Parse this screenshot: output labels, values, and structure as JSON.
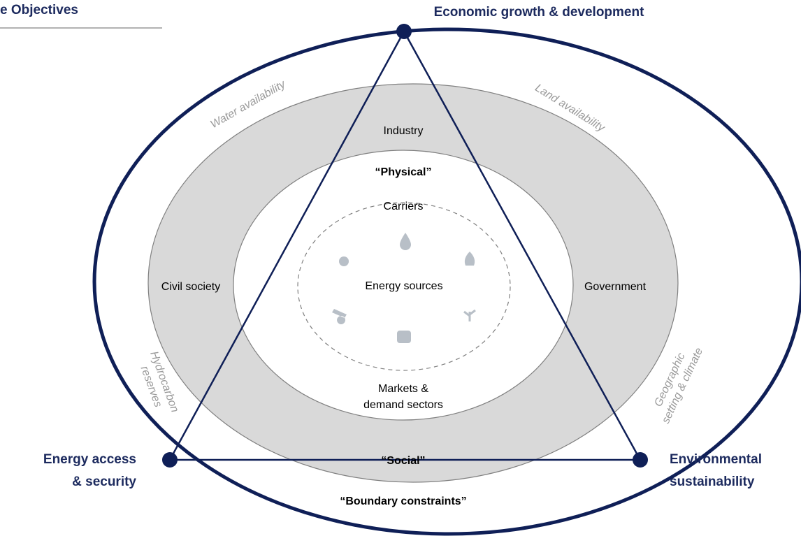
{
  "header": {
    "title": "e Objectives"
  },
  "objectives": {
    "top": "Economic growth & development",
    "left": [
      "Energy access",
      "& security"
    ],
    "right": [
      "Environmental",
      "sustainability"
    ]
  },
  "layers": {
    "boundary": "“Boundary constraints”",
    "social": "“Social”",
    "physical": "“Physical”"
  },
  "actors": {
    "industry": "Industry",
    "civil": "Civil society",
    "government": "Government"
  },
  "physical_items": {
    "carriers": "Carriers",
    "sources": "Energy sources",
    "markets": [
      "Markets &",
      "demand sectors"
    ]
  },
  "constraints": {
    "water": "Water availability",
    "land": "Land availability",
    "hydrocarbon": [
      "Hydrocarbon",
      "reserves"
    ],
    "geographic": [
      "Geographic",
      "setting & climate"
    ]
  }
}
